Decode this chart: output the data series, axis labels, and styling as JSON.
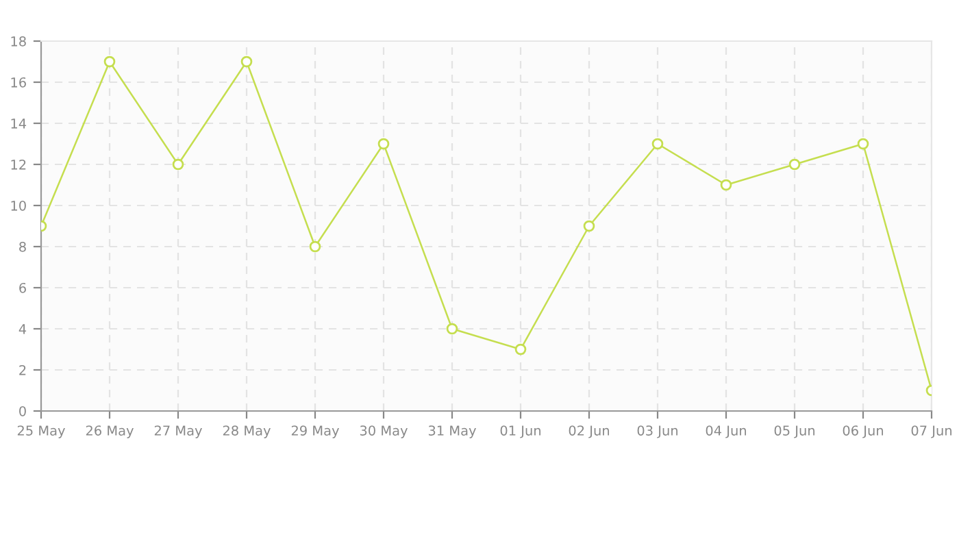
{
  "chart_data": {
    "type": "line",
    "categories": [
      "25 May",
      "26 May",
      "27 May",
      "28 May",
      "29 May",
      "30 May",
      "31 May",
      "01 Jun",
      "02 Jun",
      "03 Jun",
      "04 Jun",
      "05 Jun",
      "06 Jun",
      "07 Jun"
    ],
    "series": [
      {
        "color": "#c5de4f",
        "values": [
          9,
          17,
          12,
          17,
          8,
          13,
          4,
          3,
          9,
          13,
          11,
          12,
          13,
          1
        ]
      }
    ],
    "ylim": [
      0,
      18
    ],
    "yticks": [
      0,
      2,
      4,
      6,
      8,
      10,
      12,
      14,
      16,
      18
    ],
    "grid": true,
    "marker": "circle",
    "line_style": "solid"
  }
}
